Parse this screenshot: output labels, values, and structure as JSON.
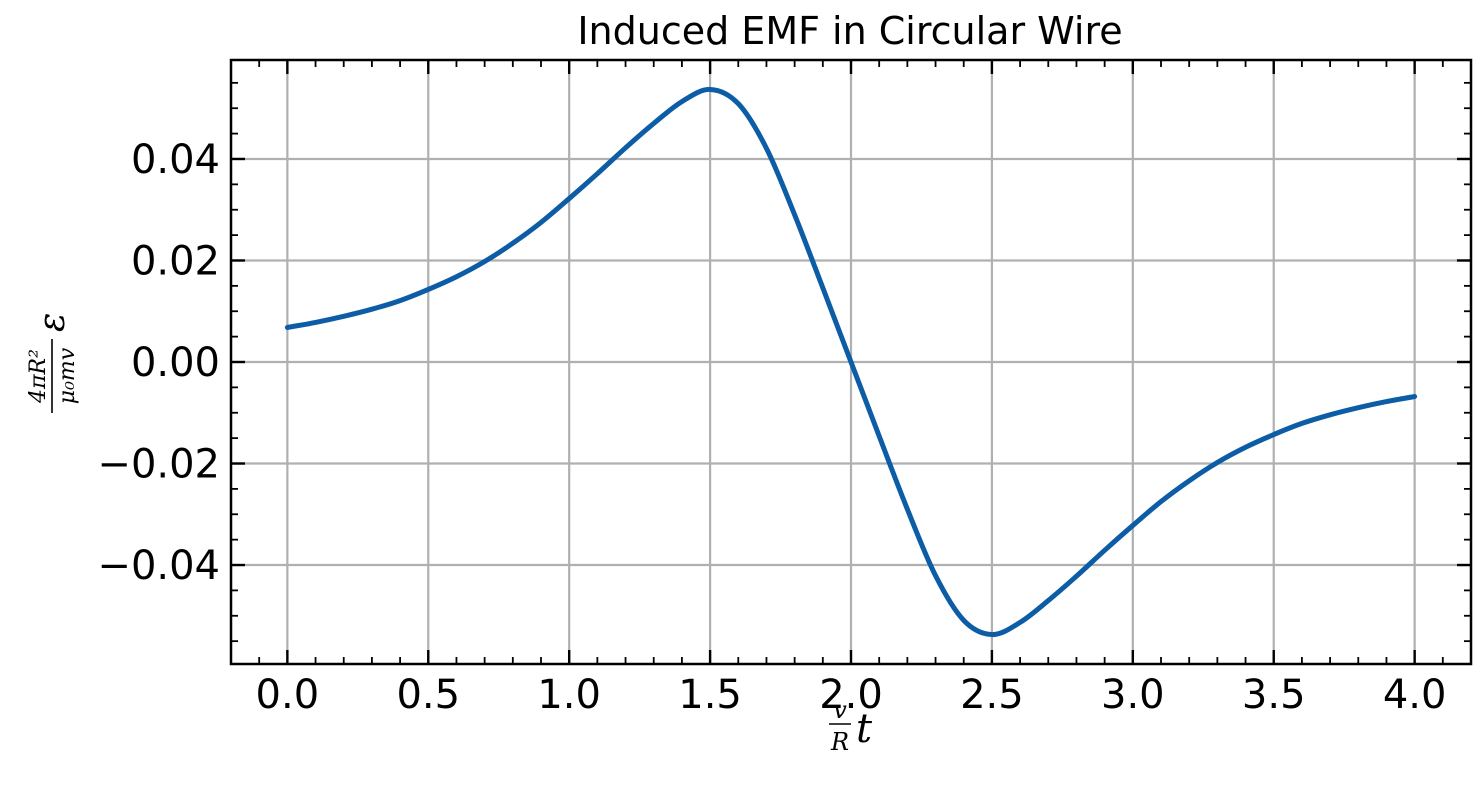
{
  "chart_data": {
    "type": "line",
    "title": "Induced EMF in Circular Wire",
    "xlabel": {
      "frac_numerator": "v",
      "frac_denominator": "R",
      "variable": "t"
    },
    "ylabel": {
      "frac_numerator": "4πR²",
      "frac_denominator": "μ₀mv",
      "variable": "ε"
    },
    "xlim": [
      -0.2,
      4.2
    ],
    "ylim": [
      -0.0595,
      0.0595
    ],
    "xticks": [
      0.0,
      0.5,
      1.0,
      1.5,
      2.0,
      2.5,
      3.0,
      3.5,
      4.0
    ],
    "xtick_labels": [
      "0.0",
      "0.5",
      "1.0",
      "1.5",
      "2.0",
      "2.5",
      "3.0",
      "3.5",
      "4.0"
    ],
    "yticks": [
      -0.04,
      -0.02,
      0.0,
      0.02,
      0.04
    ],
    "ytick_labels": [
      "−0.04",
      "−0.02",
      "0.00",
      "0.02",
      "0.04"
    ],
    "grid": true,
    "legend": "none",
    "series": [
      {
        "color": "#0c5da5",
        "x": [
          0.0,
          0.1,
          0.2,
          0.3,
          0.4,
          0.5,
          0.6,
          0.7,
          0.8,
          0.9,
          1.0,
          1.1,
          1.2,
          1.3,
          1.4,
          1.5,
          1.6,
          1.7,
          1.8,
          1.9,
          2.0,
          2.1,
          2.2,
          2.3,
          2.4,
          2.5,
          2.6,
          2.7,
          2.8,
          2.9,
          3.0,
          3.1,
          3.2,
          3.3,
          3.4,
          3.5,
          3.6,
          3.7,
          3.8,
          3.9,
          4.0
        ],
        "y": [
          0.0068,
          0.0078,
          0.009,
          0.0104,
          0.0121,
          0.0143,
          0.0168,
          0.0198,
          0.0234,
          0.0275,
          0.0322,
          0.0371,
          0.0422,
          0.047,
          0.0513,
          0.0537,
          0.0509,
          0.0421,
          0.029,
          0.0146,
          0.0,
          -0.0146,
          -0.029,
          -0.0421,
          -0.0509,
          -0.0537,
          -0.0513,
          -0.047,
          -0.0422,
          -0.0371,
          -0.0322,
          -0.0275,
          -0.0234,
          -0.0198,
          -0.0168,
          -0.0143,
          -0.0121,
          -0.0104,
          -0.009,
          -0.0078,
          -0.0068
        ]
      }
    ]
  }
}
